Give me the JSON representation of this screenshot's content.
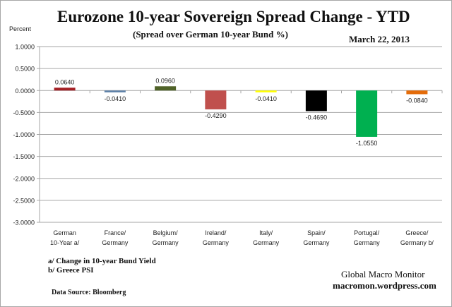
{
  "chart_data": {
    "type": "bar",
    "title": "Eurozone 10-year Sovereign Spread Change - YTD",
    "subtitle": "(Spread over German 10-year Bund %)",
    "date": "March 22,  2013",
    "ylabel": "Percent",
    "ylim": [
      -3.0,
      1.0
    ],
    "yticks": [
      "1.0000",
      "0.5000",
      "0.0000",
      "-0.5000",
      "-1.0000",
      "-1.5000",
      "-2.0000",
      "-2.5000",
      "-3.0000"
    ],
    "ytick_values": [
      1.0,
      0.5,
      0.0,
      -0.5,
      -1.0,
      -1.5,
      -2.0,
      -2.5,
      -3.0
    ],
    "grid": true,
    "categories": [
      [
        "German",
        "10-Year a/"
      ],
      [
        "France/",
        "Germany"
      ],
      [
        "Belgium/",
        "Germany"
      ],
      [
        "Ireland/",
        "Germany"
      ],
      [
        "Italy/",
        "Germany"
      ],
      [
        "Spain/",
        "Germany"
      ],
      [
        "Portugal/",
        "Germany"
      ],
      [
        "Greece/",
        "Germany b/"
      ]
    ],
    "values": [
      0.064,
      -0.041,
      0.096,
      -0.429,
      -0.041,
      -0.469,
      -1.055,
      -0.084
    ],
    "data_labels": [
      "0.0640",
      "-0.0410",
      "0.0960",
      "-0.4290",
      "-0.0410",
      "-0.4690",
      "-1.0550",
      "-0.0840"
    ],
    "colors": [
      "#a31f24",
      "#5b7fa6",
      "#4f6228",
      "#c0504d",
      "#ffff00",
      "#000000",
      "#00b050",
      "#e46c0a"
    ]
  },
  "notes": {
    "a": "a/  Change in 10-year Bund Yield",
    "b": "b/  Greece PSI",
    "source": "Data Source:  Bloomberg",
    "brand": "Global Macro Monitor",
    "site": "macromon.wordpress.com"
  }
}
